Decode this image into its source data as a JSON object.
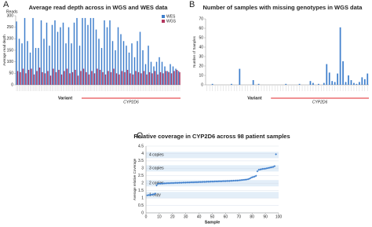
{
  "chart_data": [
    {
      "type": "bar",
      "panel": "A",
      "title": "Average read depth across in WGS and WES data",
      "unit_label": "Reads",
      "ylabel": "Average read depth",
      "xlabel": "Variant",
      "annotation": "CYP2D6",
      "ylim": [
        0,
        300
      ],
      "yticks": [
        0,
        50,
        100,
        150,
        200,
        250,
        300
      ],
      "grid": false,
      "legend": "top-right",
      "series": [
        {
          "name": "WES",
          "color": "#3f7fcc",
          "values": [
            275,
            200,
            180,
            290,
            190,
            140,
            290,
            160,
            160,
            280,
            200,
            270,
            170,
            260,
            280,
            230,
            250,
            270,
            180,
            250,
            180,
            270,
            290,
            170,
            290,
            290,
            260,
            290,
            290,
            240,
            200,
            160,
            280,
            250,
            280,
            190,
            150,
            250,
            220,
            190,
            170,
            140,
            180,
            120,
            190,
            230,
            150,
            90,
            170,
            100,
            80,
            100,
            120,
            100,
            80,
            60,
            90,
            80,
            70,
            60
          ]
        },
        {
          "name": "WGS",
          "color": "#b2365e",
          "values": [
            60,
            55,
            70,
            50,
            65,
            70,
            45,
            60,
            75,
            55,
            50,
            60,
            40,
            70,
            55,
            65,
            45,
            60,
            70,
            50,
            55,
            65,
            40,
            60,
            70,
            55,
            45,
            60,
            50,
            70,
            65,
            55,
            45,
            60,
            55,
            70,
            50,
            45,
            60,
            55,
            65,
            50,
            45,
            60,
            55,
            50,
            60,
            45,
            55,
            50,
            60,
            45,
            55,
            50,
            60,
            55,
            50,
            60,
            65,
            55
          ]
        }
      ]
    },
    {
      "type": "bar",
      "panel": "B",
      "title": "Number of samples with missing genotypes in WGS data",
      "ylabel": "Number of Samples",
      "xlabel": "Variant",
      "annotation": "CYP2D6",
      "ylim": [
        0,
        70
      ],
      "yticks": [
        0,
        10,
        20,
        30,
        40,
        50,
        60,
        70
      ],
      "grid": false,
      "series": [
        {
          "color": "#3f7fcc",
          "values": [
            0,
            0,
            1,
            0,
            0,
            0,
            0,
            0,
            0,
            1,
            0,
            0,
            17,
            0,
            0,
            0,
            0,
            5,
            0,
            1,
            0,
            0,
            0,
            0,
            0,
            0,
            0,
            0,
            0,
            1,
            0,
            0,
            0,
            0,
            1,
            0,
            0,
            0,
            4,
            2,
            0,
            1,
            0,
            2,
            22,
            13,
            4,
            3,
            12,
            61,
            25,
            3,
            10,
            5,
            2,
            1,
            3,
            8,
            6,
            12
          ]
        }
      ]
    },
    {
      "type": "scatter",
      "panel": "C",
      "title": "Relative coverage in CYP2D6 across 98 patient samples",
      "ylabel": "Average relative Coverage",
      "xlabel": "Sample",
      "annotations": [
        "4 copies",
        "3 copies",
        "2 copies",
        "1 copy"
      ],
      "xlim": [
        0,
        100
      ],
      "xticks": [
        0,
        10,
        20,
        30,
        40,
        50,
        60,
        70,
        80,
        90,
        100
      ],
      "ylim": [
        0,
        4.5
      ],
      "yticks": [
        0,
        0.5,
        1,
        1.5,
        2,
        2.5,
        3,
        3.5,
        4,
        4.5
      ],
      "grid": true,
      "series": [
        {
          "color": "#3f7fcc",
          "x": [
            1,
            2,
            3,
            4,
            5,
            6,
            7,
            8,
            9,
            10,
            11,
            12,
            13,
            14,
            15,
            16,
            17,
            18,
            19,
            20,
            21,
            22,
            23,
            24,
            25,
            26,
            27,
            28,
            29,
            30,
            31,
            32,
            33,
            34,
            35,
            36,
            37,
            38,
            39,
            40,
            41,
            42,
            43,
            44,
            45,
            46,
            47,
            48,
            49,
            50,
            51,
            52,
            53,
            54,
            55,
            56,
            57,
            58,
            59,
            60,
            61,
            62,
            63,
            64,
            65,
            66,
            67,
            68,
            69,
            70,
            71,
            72,
            73,
            74,
            75,
            76,
            77,
            78,
            79,
            80,
            81,
            82,
            83,
            84,
            85,
            86,
            87,
            88,
            89,
            90,
            91,
            92,
            93,
            94,
            95,
            96,
            97,
            98
          ],
          "values": [
            1.18,
            1.2,
            1.21,
            1.22,
            1.24,
            1.25,
            1.3,
            1.85,
            1.96,
            1.97,
            1.97,
            1.98,
            1.98,
            1.99,
            1.99,
            2.0,
            2.0,
            2.0,
            2.01,
            2.01,
            2.01,
            2.02,
            2.02,
            2.02,
            2.03,
            2.03,
            2.03,
            2.04,
            2.04,
            2.04,
            2.05,
            2.05,
            2.05,
            2.06,
            2.06,
            2.06,
            2.07,
            2.07,
            2.07,
            2.08,
            2.08,
            2.08,
            2.09,
            2.09,
            2.09,
            2.1,
            2.1,
            2.1,
            2.11,
            2.11,
            2.11,
            2.12,
            2.12,
            2.12,
            2.13,
            2.13,
            2.13,
            2.14,
            2.14,
            2.14,
            2.15,
            2.15,
            2.15,
            2.16,
            2.16,
            2.17,
            2.17,
            2.18,
            2.18,
            2.19,
            2.2,
            2.21,
            2.22,
            2.23,
            2.24,
            2.25,
            2.27,
            2.3,
            2.35,
            2.4,
            2.42,
            2.45,
            2.5,
            2.8,
            2.9,
            2.92,
            2.94,
            2.96,
            2.97,
            2.98,
            3.0,
            3.02,
            3.04,
            3.06,
            3.08,
            3.1,
            3.15,
            3.95
          ]
        }
      ]
    }
  ]
}
